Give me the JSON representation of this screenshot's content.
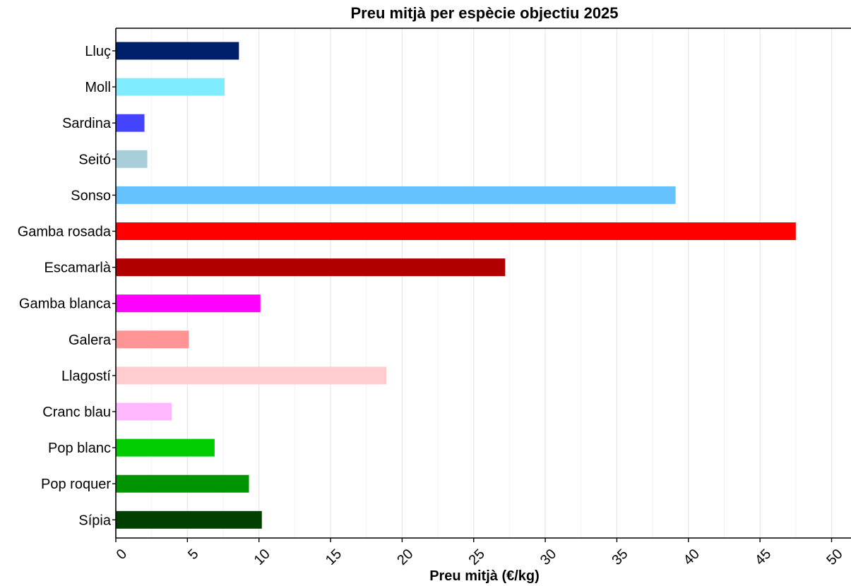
{
  "chart_data": {
    "type": "bar",
    "orientation": "horizontal",
    "title": "Preu mitjà per espècie objectiu 2025",
    "xlabel": "Preu mitjà (€/kg)",
    "ylabel": "",
    "xlim": [
      0,
      50
    ],
    "xticks": [
      0,
      5,
      10,
      15,
      20,
      25,
      30,
      35,
      40,
      45,
      50
    ],
    "grid": "vertical",
    "legend": "none",
    "categories": [
      "Lluç",
      "Moll",
      "Sardina",
      "Seitó",
      "Sonso",
      "Gamba rosada",
      "Escamarlà",
      "Gamba blanca",
      "Galera",
      "Llagostí",
      "Cranc blau",
      "Pop blanc",
      "Pop roquer",
      "Sípia"
    ],
    "values": [
      8.6,
      7.6,
      2.0,
      2.2,
      39.1,
      47.5,
      27.2,
      10.1,
      5.1,
      18.9,
      3.9,
      6.9,
      9.3,
      10.2
    ],
    "colors": [
      "#001f6b",
      "#7fedff",
      "#4444ff",
      "#a8ced9",
      "#66c2ff",
      "#ff0000",
      "#b00000",
      "#ff00ff",
      "#ff9494",
      "#ffcdd0",
      "#ffb8ff",
      "#00cc00",
      "#009400",
      "#004000"
    ]
  }
}
